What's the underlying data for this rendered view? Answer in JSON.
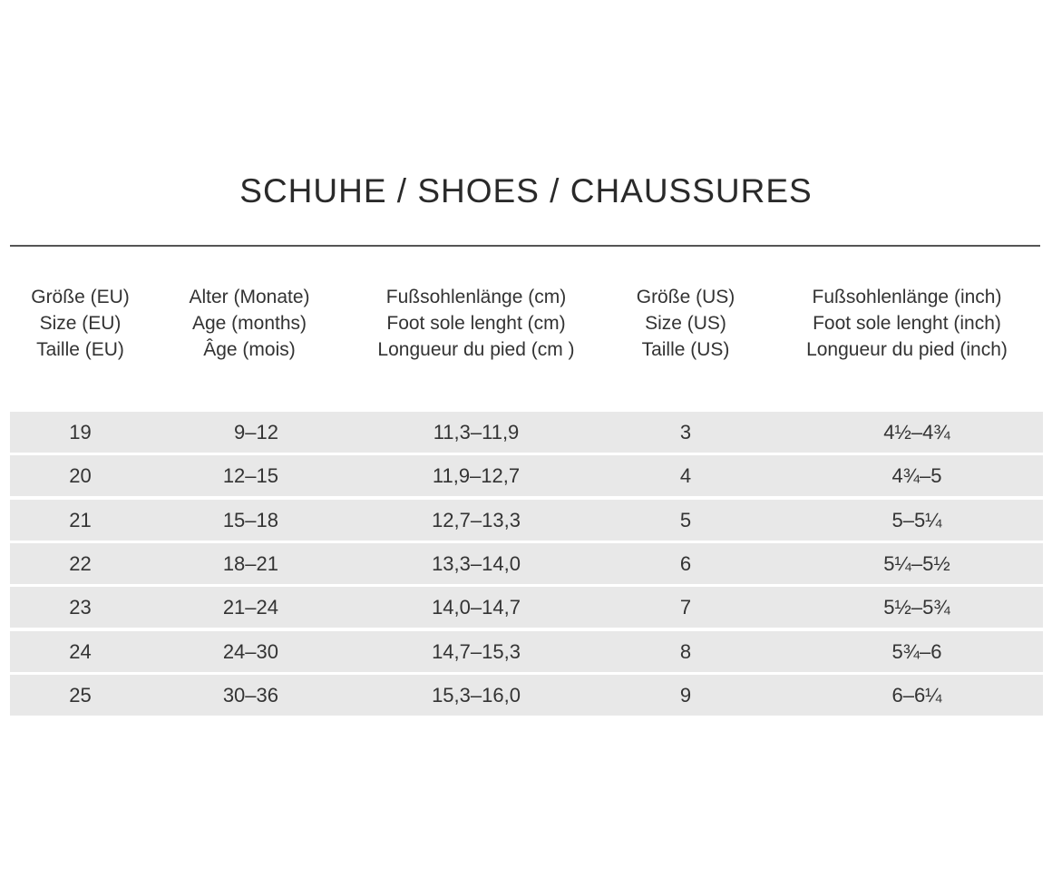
{
  "title": "SCHUHE / SHOES / CHAUSSURES",
  "columns": [
    {
      "lines": [
        "Größe (EU)",
        "Size (EU)",
        "Taille (EU)"
      ]
    },
    {
      "lines": [
        "Alter (Monate)",
        "Age (months)",
        "Âge (mois)"
      ]
    },
    {
      "lines": [
        "Fußsohlenlänge (cm)",
        "Foot sole lenght (cm)",
        "Longueur du pied (cm )"
      ]
    },
    {
      "lines": [
        "Größe (US)",
        "Size (US)",
        "Taille (US)"
      ]
    },
    {
      "lines": [
        "Fußsohlenlänge (inch)",
        "Foot sole lenght (inch)",
        "Longueur du pied (inch)"
      ]
    }
  ],
  "rows": [
    [
      "19",
      "9–12",
      "11,3–11,9",
      "3",
      "4½–4¾"
    ],
    [
      "20",
      "12–15",
      "11,9–12,7",
      "4",
      "4¾–5"
    ],
    [
      "21",
      "15–18",
      "12,7–13,3",
      "5",
      "5–5¼"
    ],
    [
      "22",
      "18–21",
      "13,3–14,0",
      "6",
      "5¼–5½"
    ],
    [
      "23",
      "21–24",
      "14,0–14,7",
      "7",
      "5½–5¾"
    ],
    [
      "24",
      "24–30",
      "14,7–15,3",
      "8",
      "5¾–6"
    ],
    [
      "25",
      "30–36",
      "15,3–16,0",
      "9",
      "6–6¼"
    ]
  ],
  "colors": {
    "row_background": "#e8e8e8",
    "rule": "#555555",
    "text": "#333333"
  }
}
